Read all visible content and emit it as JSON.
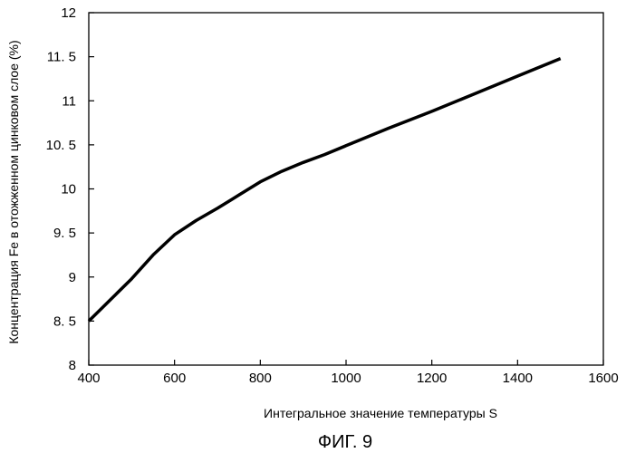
{
  "chart_data": {
    "type": "line",
    "title": "",
    "xlabel": "Интегральное значение температуры S",
    "ylabel": "Концентрация Fe в отожженном цинковом слое (%)",
    "xlim": [
      400,
      1600
    ],
    "ylim": [
      8,
      12
    ],
    "x_ticks": [
      400,
      600,
      800,
      1000,
      1200,
      1400,
      1600
    ],
    "y_ticks": [
      8,
      8.5,
      9,
      9.5,
      10,
      10.5,
      11,
      11.5,
      12
    ],
    "x_tick_labels": [
      "400",
      "600",
      "800",
      "1000",
      "1200",
      "1400",
      "1600"
    ],
    "y_tick_labels": [
      "8",
      "8. 5",
      "9",
      "9. 5",
      "10",
      "10. 5",
      "11",
      "11. 5",
      "12"
    ],
    "grid": false,
    "legend": "none",
    "series": [
      {
        "x": [
          400,
          450,
          500,
          550,
          600,
          650,
          700,
          750,
          800,
          850,
          900,
          950,
          1000,
          1100,
          1200,
          1300,
          1400,
          1500
        ],
        "y": [
          8.5,
          8.74,
          8.98,
          9.25,
          9.48,
          9.64,
          9.78,
          9.93,
          10.08,
          10.2,
          10.3,
          10.39,
          10.49,
          10.69,
          10.88,
          11.08,
          11.28,
          11.48
        ],
        "color": "#000000"
      }
    ]
  },
  "caption": "ФИГ. 9"
}
